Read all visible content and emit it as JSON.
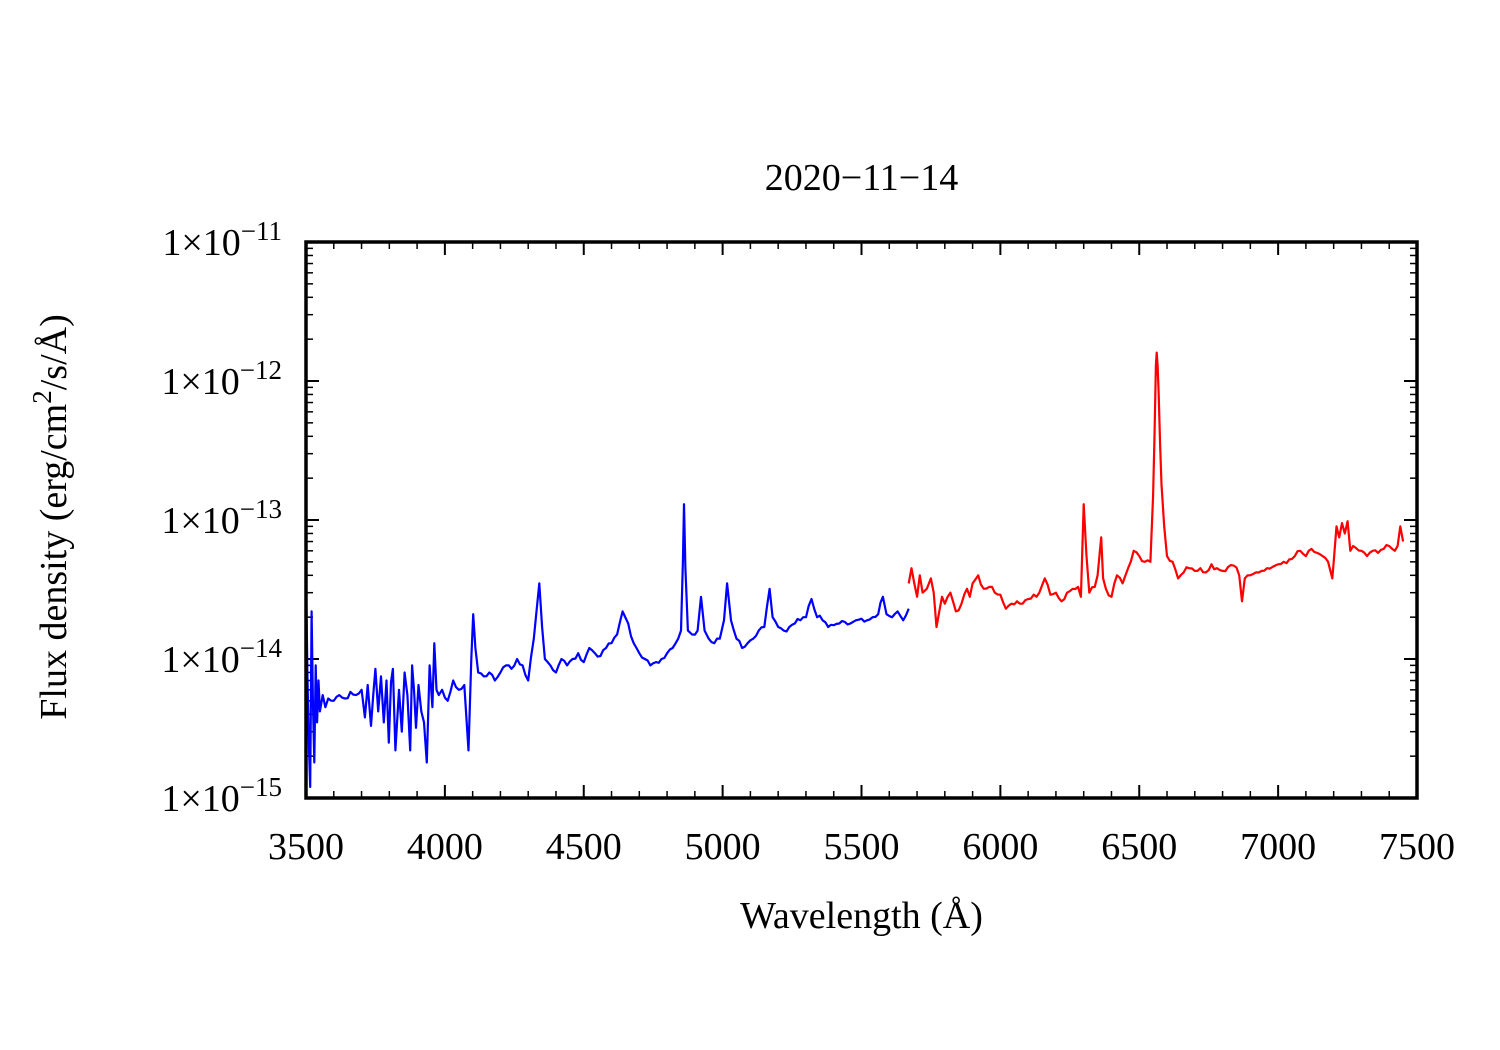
{
  "chart_data": {
    "type": "line",
    "title": "2020−11−14",
    "xlabel": "Wavelength (Å)",
    "ylabel": {
      "before": "Flux density (erg/cm",
      "sup": "2",
      "after": "/s/Å)"
    },
    "xlim": [
      3500,
      7500
    ],
    "ylim": [
      1e-15,
      1e-11
    ],
    "yscale": "log",
    "xticks": [
      "3500",
      "4000",
      "4500",
      "5000",
      "5500",
      "6000",
      "6500",
      "7000",
      "7500"
    ],
    "yticks": [
      {
        "value": 1e-11,
        "base": "1×10",
        "exp": "−11"
      },
      {
        "value": 1e-12,
        "base": "1×10",
        "exp": "−12"
      },
      {
        "value": 1e-13,
        "base": "1×10",
        "exp": "−13"
      },
      {
        "value": 1e-14,
        "base": "1×10",
        "exp": "−14"
      },
      {
        "value": 1e-15,
        "base": "1×10",
        "exp": "−15"
      }
    ],
    "grid": false,
    "legend": "none",
    "series": [
      {
        "color": "#0000ff",
        "x": [
          3500,
          3505,
          3510,
          3515,
          3520,
          3525,
          3530,
          3535,
          3540,
          3545,
          3550,
          3560,
          3570,
          3580,
          3600,
          3620,
          3640,
          3660,
          3680,
          3700,
          3712,
          3722,
          3734,
          3750,
          3760,
          3770,
          3780,
          3790,
          3798,
          3806,
          3813,
          3822,
          3835,
          3845,
          3855,
          3865,
          3875,
          3882,
          3889,
          3896,
          3905,
          3915,
          3925,
          3935,
          3945,
          3955,
          3962,
          3970,
          3978,
          3990,
          4010,
          4030,
          4050,
          4070,
          4085,
          4095,
          4102,
          4110,
          4120,
          4140,
          4160,
          4180,
          4200,
          4220,
          4240,
          4260,
          4280,
          4300,
          4320,
          4330,
          4340,
          4350,
          4360,
          4380,
          4400,
          4420,
          4440,
          4460,
          4480,
          4500,
          4520,
          4540,
          4560,
          4580,
          4600,
          4620,
          4640,
          4660,
          4680,
          4700,
          4720,
          4740,
          4760,
          4780,
          4800,
          4820,
          4840,
          4850,
          4857,
          4861,
          4866,
          4875,
          4890,
          4910,
          4922,
          4935,
          4950,
          4970,
          4990,
          5005,
          5016,
          5030,
          5050,
          5070,
          5090,
          5110,
          5130,
          5150,
          5169,
          5180,
          5200,
          5220,
          5240,
          5260,
          5280,
          5300,
          5320,
          5340,
          5360,
          5380,
          5400,
          5420,
          5440,
          5460,
          5480,
          5500,
          5520,
          5540,
          5560,
          5577,
          5590,
          5610,
          5630,
          5650,
          5670
        ],
        "y": [
          4.2e-14,
          8e-15,
          2.5e-15,
          1.2e-15,
          2.2e-14,
          5e-15,
          1.8e-15,
          9e-15,
          3.5e-15,
          7e-15,
          4.2e-15,
          5.5e-15,
          4.5e-15,
          5.2e-15,
          5e-15,
          5.5e-15,
          5.2e-15,
          5.8e-15,
          5.5e-15,
          6e-15,
          3.8e-15,
          6.5e-15,
          3.3e-15,
          8.5e-15,
          4.2e-15,
          7.5e-15,
          3.5e-15,
          7e-15,
          2.5e-15,
          6.8e-15,
          8.5e-15,
          2.2e-15,
          6e-15,
          3e-15,
          8e-15,
          5.5e-15,
          2.2e-15,
          9e-15,
          6e-15,
          3.2e-15,
          6.5e-15,
          4.2e-15,
          3.5e-15,
          1.8e-15,
          9e-15,
          4.5e-15,
          1.3e-14,
          6e-15,
          5.5e-15,
          6e-15,
          5e-15,
          7e-15,
          6e-15,
          6.5e-15,
          2.2e-15,
          1e-14,
          2.1e-14,
          1.2e-14,
          8e-15,
          7.5e-15,
          8e-15,
          7e-15,
          8e-15,
          9e-15,
          8.5e-15,
          1e-14,
          9e-15,
          7e-15,
          1.4e-14,
          2.2e-14,
          3.5e-14,
          1.7e-14,
          1e-14,
          9e-15,
          8e-15,
          1e-14,
          9e-15,
          1e-14,
          1.1e-14,
          9.5e-15,
          1.2e-14,
          1.1e-14,
          1.05e-14,
          1.2e-14,
          1.3e-14,
          1.5e-14,
          2.2e-14,
          1.8e-14,
          1.3e-14,
          1.1e-14,
          1e-14,
          9e-15,
          9.5e-15,
          1e-14,
          1.1e-14,
          1.2e-14,
          1.4e-14,
          1.6e-14,
          5e-14,
          1.3e-13,
          4.5e-14,
          1.6e-14,
          1.5e-14,
          1.6e-14,
          2.8e-14,
          1.6e-14,
          1.4e-14,
          1.3e-14,
          1.4e-14,
          1.9e-14,
          3.5e-14,
          1.9e-14,
          1.4e-14,
          1.2e-14,
          1.3e-14,
          1.4e-14,
          1.6e-14,
          1.7e-14,
          3.2e-14,
          2e-14,
          1.7e-14,
          1.6e-14,
          1.7e-14,
          1.8e-14,
          1.9e-14,
          2e-14,
          2.7e-14,
          2e-14,
          1.9e-14,
          1.7e-14,
          1.75e-14,
          1.8e-14,
          1.85e-14,
          1.8e-14,
          1.9e-14,
          1.95e-14,
          1.9e-14,
          2e-14,
          2.1e-14,
          2.8e-14,
          2.1e-14,
          2e-14,
          2.2e-14,
          1.9e-14,
          2.3e-14
        ]
      },
      {
        "color": "#ff0000",
        "x": [
          5670,
          5680,
          5690,
          5700,
          5710,
          5720,
          5735,
          5750,
          5760,
          5770,
          5780,
          5790,
          5800,
          5820,
          5840,
          5860,
          5880,
          5890,
          5900,
          5920,
          5940,
          5960,
          5980,
          6000,
          6020,
          6040,
          6060,
          6080,
          6100,
          6120,
          6140,
          6160,
          6180,
          6200,
          6220,
          6240,
          6260,
          6280,
          6290,
          6300,
          6310,
          6320,
          6340,
          6350,
          6363,
          6370,
          6380,
          6400,
          6420,
          6440,
          6460,
          6480,
          6500,
          6520,
          6540,
          6550,
          6555,
          6560,
          6563,
          6566,
          6570,
          6575,
          6580,
          6590,
          6600,
          6620,
          6640,
          6660,
          6680,
          6700,
          6720,
          6740,
          6760,
          6780,
          6800,
          6820,
          6840,
          6860,
          6870,
          6880,
          6900,
          6920,
          6940,
          6960,
          6980,
          7000,
          7020,
          7040,
          7060,
          7080,
          7100,
          7120,
          7140,
          7160,
          7180,
          7195,
          7200,
          7210,
          7220,
          7230,
          7240,
          7250,
          7260,
          7270,
          7280,
          7300,
          7320,
          7340,
          7360,
          7380,
          7400,
          7420,
          7430,
          7440,
          7450
        ],
        "y": [
          3.5e-14,
          4.5e-14,
          3.5e-14,
          2.8e-14,
          4e-14,
          3e-14,
          3.2e-14,
          3.8e-14,
          3e-14,
          1.7e-14,
          2.2e-14,
          2.8e-14,
          2.5e-14,
          3e-14,
          2.2e-14,
          2.5e-14,
          3.2e-14,
          2.8e-14,
          3.5e-14,
          4e-14,
          3.2e-14,
          3.3e-14,
          3e-14,
          2.9e-14,
          2.3e-14,
          2.5e-14,
          2.6e-14,
          2.5e-14,
          2.7e-14,
          2.9e-14,
          3e-14,
          3.8e-14,
          2.9e-14,
          3e-14,
          2.6e-14,
          3e-14,
          3.2e-14,
          3.3e-14,
          2.8e-14,
          1.3e-13,
          5.5e-14,
          3e-14,
          3.3e-14,
          4e-14,
          7.5e-14,
          3.8e-14,
          3.2e-14,
          2.8e-14,
          4e-14,
          3.5e-14,
          4.5e-14,
          6e-14,
          5.5e-14,
          5e-14,
          5e-14,
          1.5e-13,
          4e-13,
          1.3e-12,
          1.6e-12,
          1.3e-12,
          8e-13,
          3.5e-13,
          1.8e-13,
          9e-14,
          5.5e-14,
          5e-14,
          3.8e-14,
          4.2e-14,
          4.5e-14,
          4.3e-14,
          4.5e-14,
          4.2e-14,
          4.8e-14,
          4.5e-14,
          4.3e-14,
          4.6e-14,
          4.7e-14,
          4e-14,
          2.6e-14,
          3.8e-14,
          4e-14,
          4.2e-14,
          4.3e-14,
          4.5e-14,
          4.6e-14,
          4.8e-14,
          5e-14,
          5.2e-14,
          5.5e-14,
          6e-14,
          5.5e-14,
          6.2e-14,
          5.8e-14,
          5.5e-14,
          5e-14,
          3.8e-14,
          5e-14,
          9e-14,
          7.5e-14,
          9.5e-14,
          8e-14,
          9.8e-14,
          6e-14,
          6.5e-14,
          6.3e-14,
          6e-14,
          5.5e-14,
          6e-14,
          5.8e-14,
          6.2e-14,
          6.5e-14,
          6e-14,
          6.5e-14,
          9e-14,
          7e-14
        ]
      }
    ]
  }
}
